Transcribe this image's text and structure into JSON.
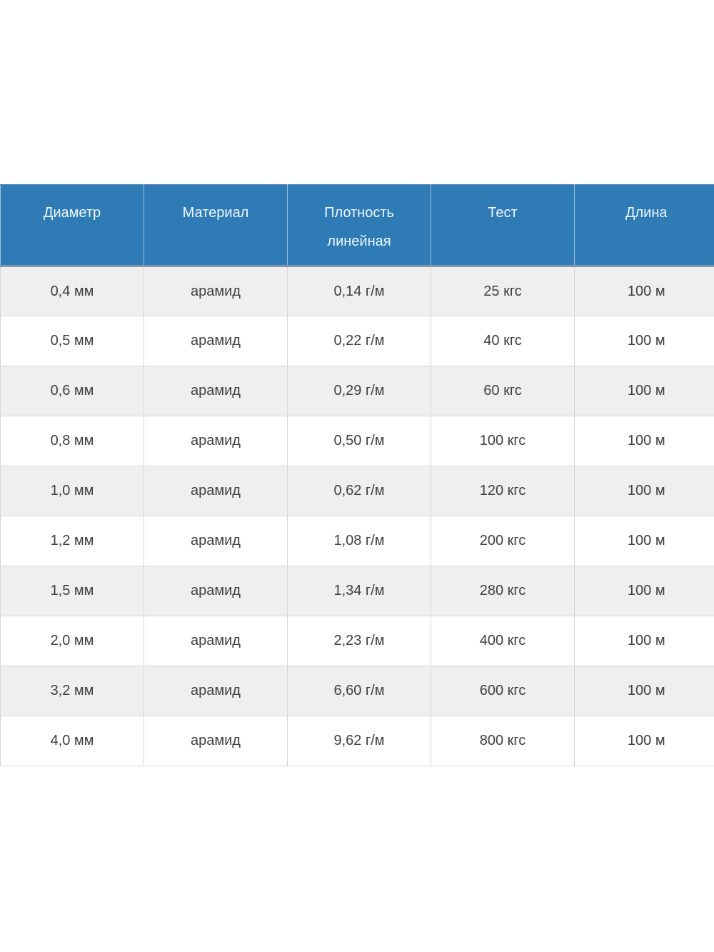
{
  "table": {
    "headers": [
      "Диаметр",
      "Материал",
      "Плотность линейная",
      "Тест",
      "Длина"
    ],
    "rows": [
      [
        "0,4 мм",
        "арамид",
        "0,14 г/м",
        "25 кгс",
        "100 м"
      ],
      [
        "0,5 мм",
        "арамид",
        "0,22 г/м",
        "40 кгс",
        "100 м"
      ],
      [
        "0,6 мм",
        "арамид",
        "0,29 г/м",
        "60 кгс",
        "100 м"
      ],
      [
        "0,8 мм",
        "арамид",
        "0,50 г/м",
        "100 кгс",
        "100 м"
      ],
      [
        "1,0 мм",
        "арамид",
        "0,62 г/м",
        "120 кгс",
        "100 м"
      ],
      [
        "1,2 мм",
        "арамид",
        "1,08 г/м",
        "200 кгс",
        "100 м"
      ],
      [
        "1,5 мм",
        "арамид",
        "1,34 г/м",
        "280 кгс",
        "100 м"
      ],
      [
        "2,0 мм",
        "арамид",
        "2,23 г/м",
        "400 кгс",
        "100 м"
      ],
      [
        "3,2 мм",
        "арамид",
        "6,60 г/м",
        "600 кгс",
        "100 м"
      ],
      [
        "4,0 мм",
        "арамид",
        "9,62 г/м",
        "800 кгс",
        "100 м"
      ]
    ],
    "colors": {
      "header_bg": "#2e7bb6",
      "header_text": "#eef6fd",
      "header_bottom_border": "#8496a5",
      "row_stripe_bg": "#efefef",
      "row_bg": "#ffffff",
      "body_text": "#3f3f3f",
      "grid_line": "#d5d5d5",
      "page_bg": "#ffffff"
    }
  }
}
